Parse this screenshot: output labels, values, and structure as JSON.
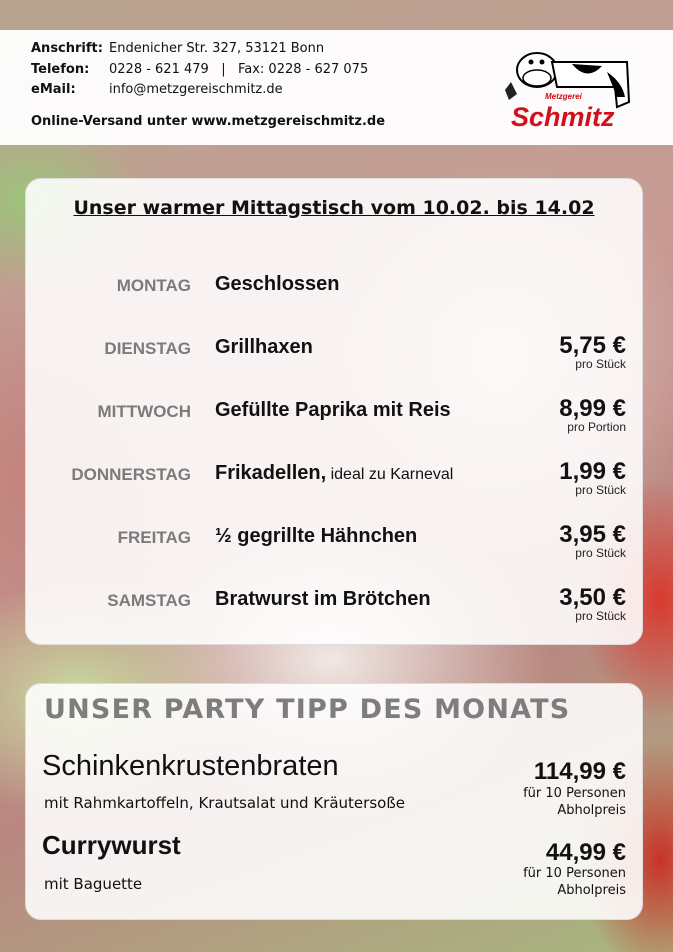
{
  "header": {
    "address_label": "Anschrift:",
    "address": "Endenicher Str. 327, 53121 Bonn",
    "phone_label": "Telefon:",
    "phone": "0228 - 621 479   |   Fax: 0228 - 627 075",
    "email_label": "eMail:",
    "email": "info@metzgereischmitz.de",
    "online": "Online-Versand unter www.metzgereischmitz.de",
    "logo_small": "Metzgerei",
    "logo_name": "Schmitz",
    "logo_color": "#d0101a"
  },
  "menu": {
    "title": "Unser warmer Mittagstisch vom 10.02. bis 14.02",
    "days": [
      {
        "day": "MONTAG",
        "dish": "Geschlossen",
        "note": "",
        "price": "",
        "unit": ""
      },
      {
        "day": "DIENSTAG",
        "dish": "Grillhaxen",
        "note": "",
        "price": "5,75 €",
        "unit": "pro Stück"
      },
      {
        "day": "MITTWOCH",
        "dish": "Gefüllte Paprika mit Reis",
        "note": "",
        "price": "8,99 €",
        "unit": "pro Portion"
      },
      {
        "day": "DONNERSTAG",
        "dish": "Frikadellen,",
        "note": " ideal zu Karneval",
        "price": "1,99 €",
        "unit": "pro Stück"
      },
      {
        "day": "FREITAG",
        "dish": "½ gegrillte Hähnchen",
        "note": "",
        "price": "3,95 €",
        "unit": "pro Stück"
      },
      {
        "day": "SAMSTAG",
        "dish": "Bratwurst im Brötchen",
        "note": "",
        "price": "3,50 €",
        "unit": "pro Stück"
      }
    ]
  },
  "party": {
    "heading": "UNSER PARTY TIPP DES MONATS",
    "items": [
      {
        "name": "Schinkenkrustenbraten",
        "sub": "mit Rahmkartoffeln, Krautsalat und Kräutersoße",
        "price": "114,99 €",
        "persons": "für 10 Personen",
        "note": "Abholpreis"
      },
      {
        "name": "Currywurst",
        "sub": "mit Baguette",
        "price": "44,99 €",
        "persons": "für 10 Personen",
        "note": "Abholpreis"
      }
    ]
  }
}
